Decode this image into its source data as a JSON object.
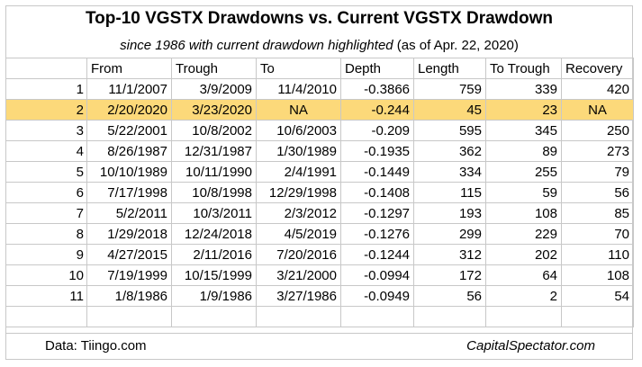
{
  "chart_data": {
    "type": "table",
    "title": "Top-10 VGSTX Drawdowns vs. Current VGSTX Drawdown",
    "subtitle_italic": "since 1986 with current drawdown highlighted",
    "subtitle_plain": "(as of Apr. 22, 2020)",
    "columns": [
      "",
      "From",
      "Trough",
      "To",
      "Depth",
      "Length",
      "To Trough",
      "Recovery"
    ],
    "highlight_row": 2,
    "highlight_color": "#fcd97a",
    "rows": [
      {
        "idx": "1",
        "from": "11/1/2007",
        "trough": "3/9/2009",
        "to": "11/4/2010",
        "depth": "-0.3866",
        "length": "759",
        "to_trough": "339",
        "recovery": "420"
      },
      {
        "idx": "2",
        "from": "2/20/2020",
        "trough": "3/23/2020",
        "to": "NA",
        "depth": "-0.244",
        "length": "45",
        "to_trough": "23",
        "recovery": "NA"
      },
      {
        "idx": "3",
        "from": "5/22/2001",
        "trough": "10/8/2002",
        "to": "10/6/2003",
        "depth": "-0.209",
        "length": "595",
        "to_trough": "345",
        "recovery": "250"
      },
      {
        "idx": "4",
        "from": "8/26/1987",
        "trough": "12/31/1987",
        "to": "1/30/1989",
        "depth": "-0.1935",
        "length": "362",
        "to_trough": "89",
        "recovery": "273"
      },
      {
        "idx": "5",
        "from": "10/10/1989",
        "trough": "10/11/1990",
        "to": "2/4/1991",
        "depth": "-0.1449",
        "length": "334",
        "to_trough": "255",
        "recovery": "79"
      },
      {
        "idx": "6",
        "from": "7/17/1998",
        "trough": "10/8/1998",
        "to": "12/29/1998",
        "depth": "-0.1408",
        "length": "115",
        "to_trough": "59",
        "recovery": "56"
      },
      {
        "idx": "7",
        "from": "5/2/2011",
        "trough": "10/3/2011",
        "to": "2/3/2012",
        "depth": "-0.1297",
        "length": "193",
        "to_trough": "108",
        "recovery": "85"
      },
      {
        "idx": "8",
        "from": "1/29/2018",
        "trough": "12/24/2018",
        "to": "4/5/2019",
        "depth": "-0.1276",
        "length": "299",
        "to_trough": "229",
        "recovery": "70"
      },
      {
        "idx": "9",
        "from": "4/27/2015",
        "trough": "2/11/2016",
        "to": "7/20/2016",
        "depth": "-0.1244",
        "length": "312",
        "to_trough": "202",
        "recovery": "110"
      },
      {
        "idx": "10",
        "from": "7/19/1999",
        "trough": "10/15/1999",
        "to": "3/21/2000",
        "depth": "-0.0994",
        "length": "172",
        "to_trough": "64",
        "recovery": "108"
      },
      {
        "idx": "11",
        "from": "1/8/1986",
        "trough": "1/9/1986",
        "to": "3/27/1986",
        "depth": "-0.0949",
        "length": "56",
        "to_trough": "2",
        "recovery": "54"
      }
    ],
    "footer_left": "Data: Tiingo.com",
    "footer_right": "CapitalSpectator.com"
  }
}
